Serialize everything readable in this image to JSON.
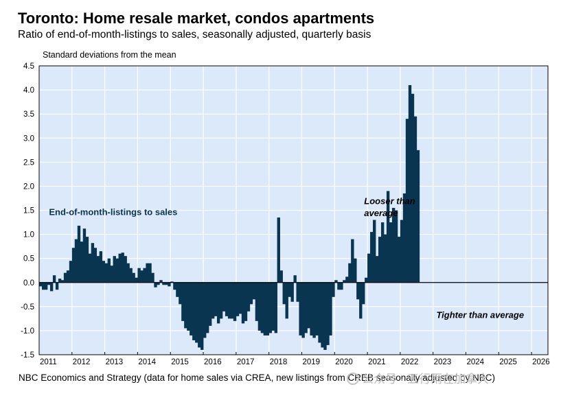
{
  "title": "Toronto: Home resale market, condos apartments",
  "subtitle": "Ratio of end-of-month-listings to sales, seasonally adjusted, quarterly basis",
  "unit_label": "Standard deviations from the mean",
  "source": "NBC Economics and Strategy (data for home sales via CREA, new listings from CREB seasonally adjusted by NBC)",
  "watermark": "公众号 · 五行雨在加拿大",
  "colors": {
    "bar": "#0a3551",
    "plot_background": "#dce9fb",
    "grid": "#ffffff",
    "label": "#0a3551"
  },
  "chart_data": {
    "type": "bar",
    "title": "Toronto: Home resale market, condos apartments",
    "subtitle": "Ratio of end-of-month-listings to sales, seasonally adjusted, quarterly basis",
    "ylabel": "Standard deviations from the mean",
    "ylim": [
      -1.5,
      4.5
    ],
    "yticks": [
      -1.5,
      -1.0,
      -0.5,
      0.0,
      0.5,
      1.0,
      1.5,
      2.0,
      2.5,
      3.0,
      3.5,
      4.0,
      4.5
    ],
    "xlim": [
      2011,
      2026.5
    ],
    "xticks": [
      "2011",
      "2012",
      "2013",
      "2014",
      "2015",
      "2016",
      "2017",
      "2018",
      "2019",
      "2020",
      "2021",
      "2022",
      "2023",
      "2024",
      "2025",
      "2026"
    ],
    "grid": true,
    "series": [
      {
        "name": "End-of-month-listings to sales",
        "x_start": 2011.0,
        "x_step": 0.08333,
        "values": [
          -0.08,
          -0.15,
          -0.15,
          -0.05,
          -0.18,
          0.15,
          -0.15,
          0.08,
          0.05,
          0.2,
          0.25,
          0.45,
          0.72,
          0.9,
          1.18,
          0.85,
          1.12,
          0.95,
          0.6,
          0.82,
          0.72,
          0.55,
          0.65,
          0.45,
          0.4,
          0.5,
          0.35,
          0.55,
          0.5,
          0.6,
          0.62,
          0.55,
          0.4,
          0.3,
          0.2,
          0.1,
          0.3,
          0.25,
          0.3,
          0.4,
          0.4,
          0.2,
          -0.1,
          -0.05,
          0.05,
          -0.05,
          -0.05,
          -0.08,
          0.02,
          -0.15,
          -0.3,
          -0.45,
          -0.8,
          -0.95,
          -1.0,
          -1.1,
          -1.2,
          -1.25,
          -1.35,
          -1.4,
          -1.15,
          -1.05,
          -0.9,
          -0.75,
          -0.7,
          -0.85,
          -0.75,
          -0.6,
          -0.7,
          -0.75,
          -0.75,
          -0.8,
          -0.7,
          -0.65,
          -0.85,
          -0.8,
          -0.6,
          -0.45,
          -0.35,
          -0.8,
          -1.0,
          -1.05,
          -1.1,
          -1.1,
          -1.05,
          -1.0,
          -1.05,
          1.35,
          0.25,
          -0.45,
          -0.75,
          -0.3,
          -0.4,
          0.15,
          -0.4,
          -1.1,
          -1.15,
          -1.05,
          -0.95,
          -1.1,
          -1.15,
          -1.1,
          -1.25,
          -1.35,
          -1.4,
          -1.3,
          -1.1,
          -0.3,
          0.05,
          -0.15,
          -0.15,
          0.05,
          0.12,
          0.4,
          0.9,
          0.5,
          -0.35,
          -0.75,
          -0.45,
          0.1,
          0.6,
          1.05,
          1.3,
          0.55,
          0.95,
          1.25,
          1.0,
          1.9,
          1.25,
          1.55,
          1.5,
          0.95,
          1.3,
          1.85,
          3.4,
          4.1,
          3.92,
          3.45,
          2.75
        ]
      }
    ],
    "annotations": [
      {
        "text": "End-of-month-listings to sales",
        "style": "bold",
        "x": 2011.3,
        "y": 1.4
      },
      {
        "text": "Looser than",
        "style": "bold-italic",
        "x": 2020.9,
        "y": 1.63
      },
      {
        "text": "average",
        "style": "bold-italic",
        "x": 2020.9,
        "y": 1.38
      },
      {
        "text": "Tighter than average",
        "style": "bold-italic",
        "x": 2023.1,
        "y": -0.74
      }
    ]
  }
}
